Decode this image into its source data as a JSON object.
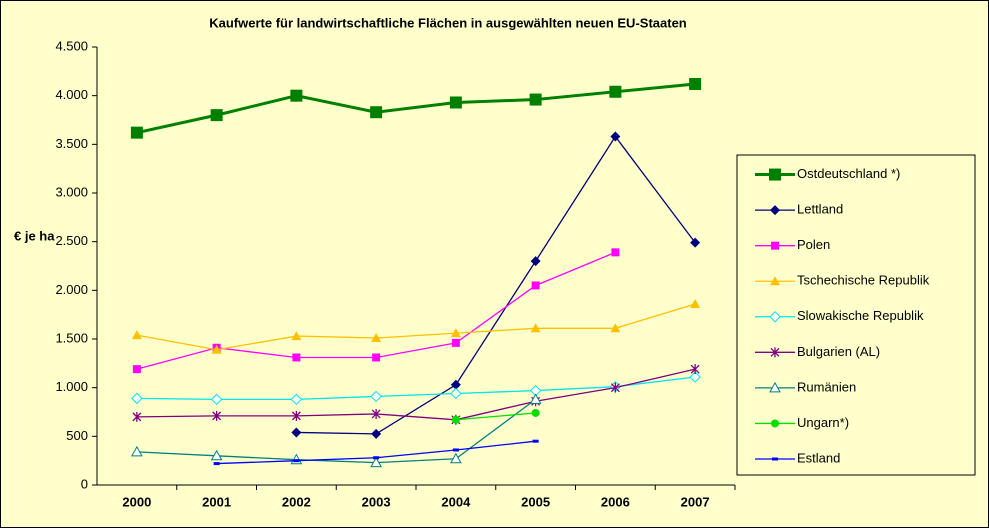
{
  "chart_data": {
    "type": "line",
    "title": "Kaufwerte für landwirtschaftliche Flächen in ausgewählten neuen EU-Staaten",
    "y_label": "€ je ha",
    "categories": [
      "2000",
      "2001",
      "2002",
      "2003",
      "2004",
      "2005",
      "2006",
      "2007"
    ],
    "ylim": [
      0,
      4500
    ],
    "yticks": [
      0,
      500,
      {
        "value": 1000,
        "label": "1.000"
      },
      {
        "value": 1500,
        "label": "1.500"
      },
      {
        "value": 2000,
        "label": "2.000"
      },
      {
        "value": 2500,
        "label": "2.500"
      },
      {
        "value": 3000,
        "label": "3.000"
      },
      {
        "value": 3500,
        "label": "3.500"
      },
      {
        "value": 4000,
        "label": "4.000"
      },
      {
        "value": 4500,
        "label": "4.500"
      }
    ],
    "grid": false,
    "legend": "right",
    "series": [
      {
        "name": "Ostdeutschland *)",
        "color": "#008000",
        "marker": "square",
        "width": 3,
        "values": [
          3620,
          3800,
          4000,
          3830,
          3930,
          3960,
          4040,
          4120
        ]
      },
      {
        "name": "Lettland",
        "color": "#000080",
        "marker": "diamond",
        "width": 1.3,
        "values": [
          null,
          null,
          540,
          525,
          1030,
          2300,
          3580,
          2490
        ]
      },
      {
        "name": "Polen",
        "color": "#ff00ff",
        "marker": "square-small",
        "width": 1.3,
        "values": [
          1190,
          1410,
          1310,
          1310,
          1460,
          2050,
          2390,
          null
        ]
      },
      {
        "name": "Tschechische Republik",
        "color": "#ffc000",
        "marker": "triangle",
        "width": 1.3,
        "values": [
          1540,
          1390,
          1530,
          1510,
          1560,
          1610,
          1610,
          1860
        ]
      },
      {
        "name": "Slowakische Republik",
        "color": "#00e5ee",
        "marker": "diamond-open",
        "width": 1.3,
        "values": [
          890,
          880,
          880,
          910,
          940,
          970,
          1010,
          1110
        ]
      },
      {
        "name": "Bulgarien (AL)",
        "color": "#800080",
        "marker": "asterisk",
        "width": 1.3,
        "values": [
          700,
          710,
          710,
          730,
          670,
          860,
          1000,
          1190
        ]
      },
      {
        "name": "Rumänien",
        "color": "#008080",
        "marker": "triangle-open",
        "width": 1.3,
        "values": [
          340,
          300,
          260,
          230,
          270,
          880,
          null,
          null
        ]
      },
      {
        "name": "Ungarn*)",
        "color": "#00e000",
        "marker": "circle",
        "width": 1.3,
        "values": [
          null,
          null,
          null,
          null,
          670,
          740,
          null,
          null
        ]
      },
      {
        "name": "Estland",
        "color": "#0000ff",
        "marker": "dash",
        "width": 1.3,
        "values": [
          null,
          220,
          250,
          280,
          360,
          450,
          null,
          null
        ]
      }
    ]
  }
}
